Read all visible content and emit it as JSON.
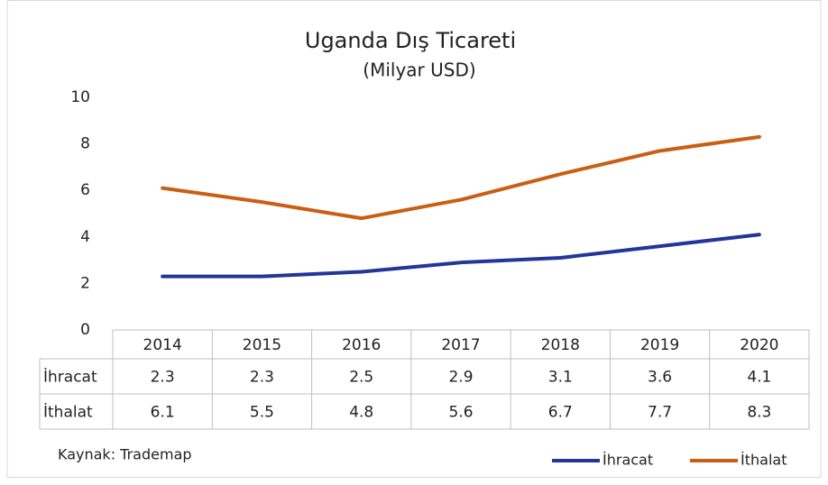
{
  "chart_data": {
    "type": "line",
    "title": "Uganda Dış Ticareti",
    "subtitle": "(Milyar USD)",
    "categories": [
      "2014",
      "2015",
      "2016",
      "2017",
      "2018",
      "2019",
      "2020"
    ],
    "series": [
      {
        "name": "İhracat",
        "color": "#22369a",
        "values": [
          2.3,
          2.3,
          2.5,
          2.9,
          3.1,
          3.6,
          4.1
        ]
      },
      {
        "name": "İthalat",
        "color": "#c95e14",
        "values": [
          6.1,
          5.5,
          4.8,
          5.6,
          6.7,
          7.7,
          8.3
        ]
      }
    ],
    "ylim": [
      0,
      10
    ],
    "yticks": [
      0,
      2,
      4,
      6,
      8,
      10
    ],
    "grid": false,
    "legend": "bottom-right",
    "note": "Kaynak: Trademap"
  }
}
